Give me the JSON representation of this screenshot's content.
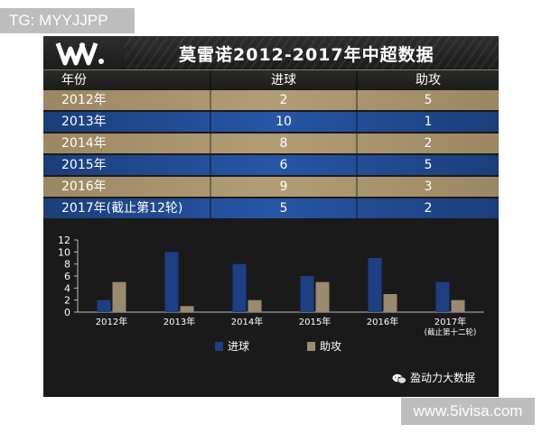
{
  "overlay": {
    "tg_label": "TG: MYYJJPP",
    "site_watermark": "www.5ivisa.com"
  },
  "logo_text": "W.",
  "title": "莫雷诺2012-2017年中超数据",
  "table": {
    "headers": [
      "年份",
      "进球",
      "助攻"
    ],
    "rows": [
      {
        "year": "2012年",
        "goals": "2",
        "assists": "5"
      },
      {
        "year": "2013年",
        "goals": "10",
        "assists": "1"
      },
      {
        "year": "2014年",
        "goals": "8",
        "assists": "2"
      },
      {
        "year": "2015年",
        "goals": "6",
        "assists": "5"
      },
      {
        "year": "2016年",
        "goals": "9",
        "assists": "3"
      },
      {
        "year": "2017年(截止第12轮)",
        "goals": "5",
        "assists": "2"
      }
    ]
  },
  "chart_data": {
    "type": "bar",
    "categories": [
      "2012年",
      "2013年",
      "2014年",
      "2015年",
      "2016年",
      "2017年\n(截止第十二轮)"
    ],
    "series": [
      {
        "name": "进球",
        "values": [
          2,
          10,
          8,
          6,
          9,
          5
        ],
        "color": "#1e3f84"
      },
      {
        "name": "助攻",
        "values": [
          5,
          1,
          2,
          5,
          3,
          2
        ],
        "color": "#9a8a70"
      }
    ],
    "ylim": [
      0,
      12
    ],
    "yticks": [
      0,
      2,
      4,
      6,
      8,
      10,
      12
    ],
    "grid": false,
    "legend": "bottom"
  },
  "brand": {
    "text": "盈动力大数据",
    "icon": "wechat-icon"
  },
  "colors": {
    "gold_row": "#a8936c",
    "blue_row": "#2250a0",
    "panel_bg": "#1a1a1a"
  }
}
